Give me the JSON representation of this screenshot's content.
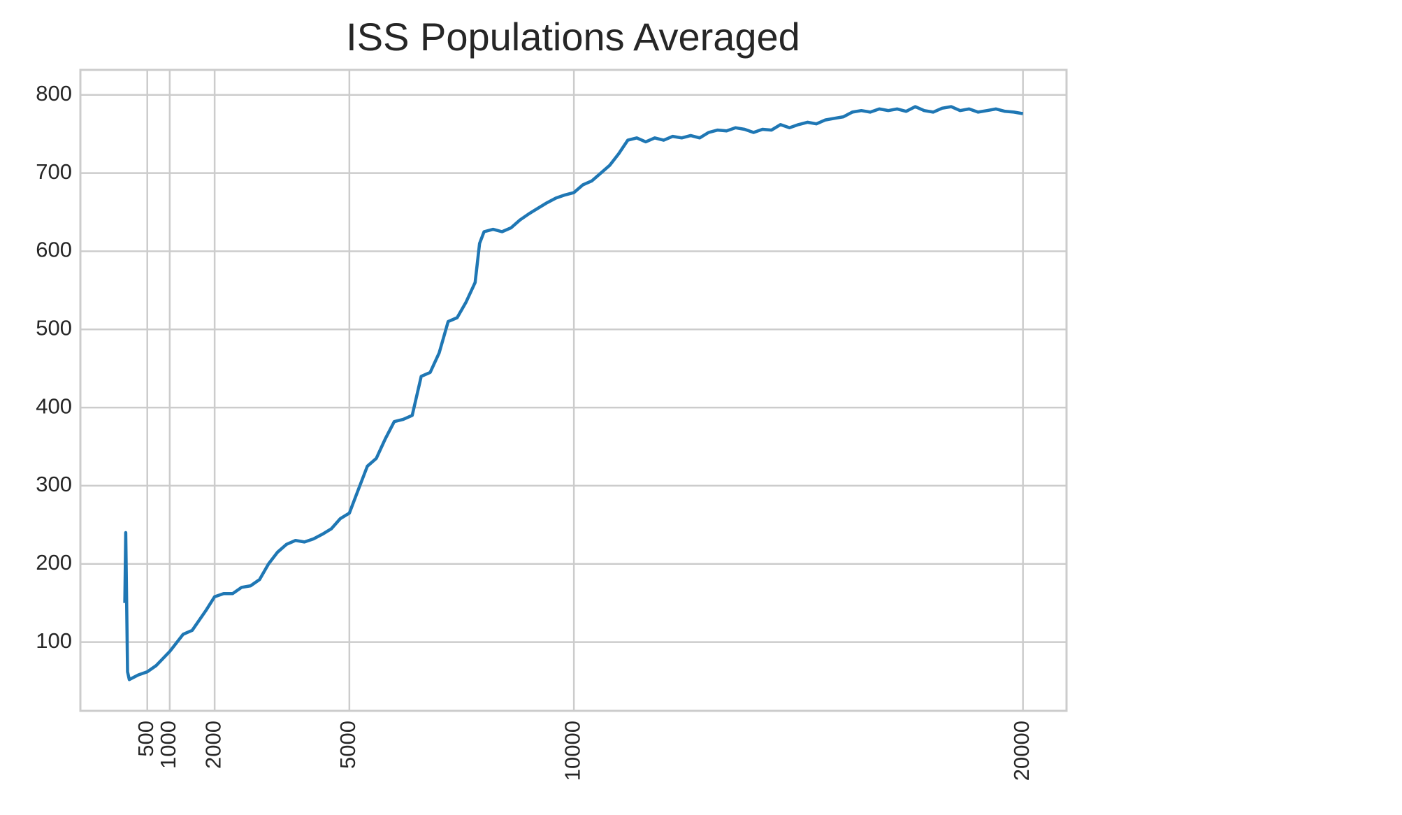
{
  "chart_data": {
    "type": "line",
    "title": "ISS Populations Averaged",
    "x": [
      0,
      20,
      60,
      100,
      300,
      500,
      700,
      1000,
      1300,
      1500,
      1800,
      2000,
      2200,
      2400,
      2600,
      2800,
      3000,
      3200,
      3400,
      3600,
      3800,
      4000,
      4200,
      4400,
      4600,
      4800,
      5000,
      5200,
      5400,
      5600,
      5800,
      6000,
      6200,
      6400,
      6600,
      6800,
      7000,
      7200,
      7400,
      7600,
      7800,
      7900,
      8000,
      8200,
      8400,
      8600,
      8800,
      9000,
      9200,
      9400,
      9600,
      9800,
      10000,
      10200,
      10400,
      10600,
      10800,
      11000,
      11200,
      11400,
      11600,
      11800,
      12000,
      12200,
      12400,
      12600,
      12800,
      13000,
      13200,
      13400,
      13600,
      13800,
      14000,
      14200,
      14400,
      14600,
      14800,
      15000,
      15200,
      15400,
      15600,
      15800,
      16000,
      16200,
      16400,
      16600,
      16800,
      17000,
      17200,
      17400,
      17600,
      17800,
      18000,
      18200,
      18400,
      18600,
      18800,
      19000,
      19200,
      19400,
      19600,
      19800,
      20000
    ],
    "values": [
      150,
      240,
      62,
      52,
      58,
      62,
      70,
      88,
      110,
      115,
      140,
      158,
      162,
      162,
      170,
      172,
      180,
      200,
      215,
      225,
      230,
      228,
      232,
      238,
      245,
      258,
      265,
      295,
      325,
      335,
      360,
      382,
      385,
      390,
      440,
      445,
      470,
      510,
      515,
      535,
      560,
      610,
      625,
      628,
      625,
      630,
      640,
      648,
      655,
      662,
      668,
      672,
      675,
      685,
      690,
      700,
      710,
      725,
      742,
      745,
      740,
      745,
      742,
      747,
      745,
      748,
      745,
      752,
      755,
      754,
      758,
      756,
      752,
      756,
      755,
      762,
      758,
      762,
      765,
      763,
      768,
      770,
      772,
      778,
      780,
      778,
      782,
      780,
      782,
      779,
      785,
      780,
      778,
      783,
      785,
      780,
      782,
      778,
      780,
      782,
      779,
      778,
      776
    ],
    "color": "#1f77b4",
    "xlim": [
      -990,
      20970
    ],
    "xticks": [
      500,
      1000,
      2000,
      5000,
      10000,
      20000
    ],
    "ylim": [
      12,
      832
    ],
    "yticks": [
      100,
      200,
      300,
      400,
      500,
      600,
      700,
      800
    ],
    "grid": true
  }
}
